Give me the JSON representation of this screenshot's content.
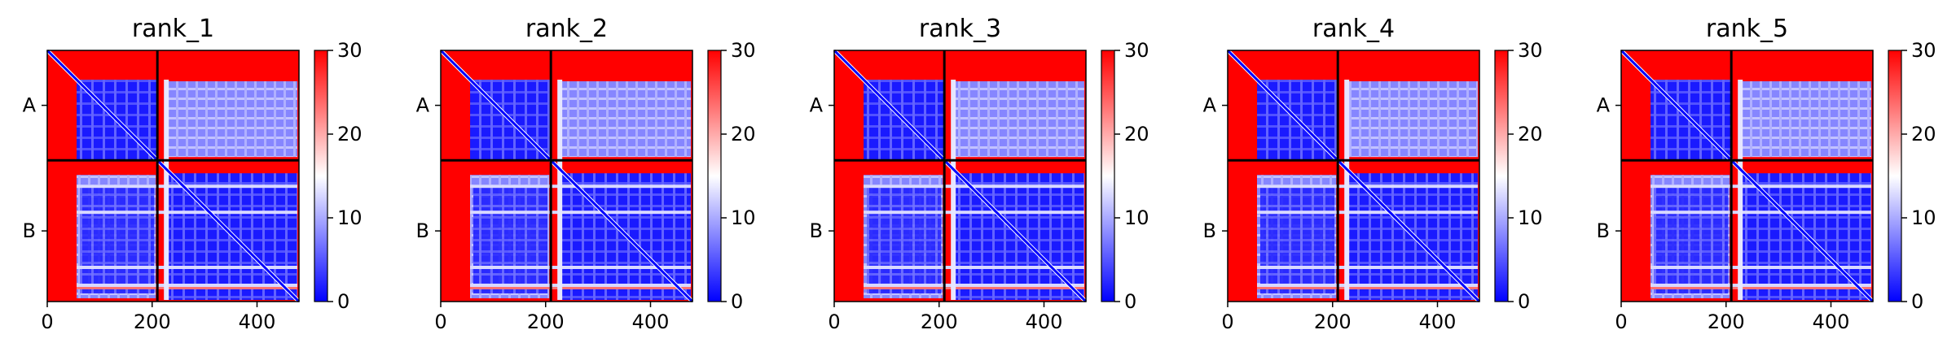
{
  "chart_data": [
    {
      "type": "heatmap",
      "title": "rank_1",
      "x_ticks": [
        0,
        200,
        400
      ],
      "x_range": [
        0,
        480
      ],
      "y_ticks": [
        "A",
        "B"
      ],
      "chain_boundary": 210,
      "colorbar": {
        "range": [
          0,
          30
        ],
        "ticks": [
          0,
          10,
          20,
          30
        ],
        "colors": [
          "#0000ff",
          "#ffffff",
          "#ff0000"
        ]
      }
    },
    {
      "type": "heatmap",
      "title": "rank_2",
      "x_ticks": [
        0,
        200,
        400
      ],
      "x_range": [
        0,
        480
      ],
      "y_ticks": [
        "A",
        "B"
      ],
      "chain_boundary": 210,
      "colorbar": {
        "range": [
          0,
          30
        ],
        "ticks": [
          0,
          10,
          20,
          30
        ],
        "colors": [
          "#0000ff",
          "#ffffff",
          "#ff0000"
        ]
      }
    },
    {
      "type": "heatmap",
      "title": "rank_3",
      "x_ticks": [
        0,
        200,
        400
      ],
      "x_range": [
        0,
        480
      ],
      "y_ticks": [
        "A",
        "B"
      ],
      "chain_boundary": 210,
      "colorbar": {
        "range": [
          0,
          30
        ],
        "ticks": [
          0,
          10,
          20,
          30
        ],
        "colors": [
          "#0000ff",
          "#ffffff",
          "#ff0000"
        ]
      }
    },
    {
      "type": "heatmap",
      "title": "rank_4",
      "x_ticks": [
        0,
        200,
        400
      ],
      "x_range": [
        0,
        480
      ],
      "y_ticks": [
        "A",
        "B"
      ],
      "chain_boundary": 210,
      "colorbar": {
        "range": [
          0,
          30
        ],
        "ticks": [
          0,
          10,
          20,
          30
        ],
        "colors": [
          "#0000ff",
          "#ffffff",
          "#ff0000"
        ]
      }
    },
    {
      "type": "heatmap",
      "title": "rank_5",
      "x_ticks": [
        0,
        200,
        400
      ],
      "x_range": [
        0,
        480
      ],
      "y_ticks": [
        "A",
        "B"
      ],
      "chain_boundary": 210,
      "colorbar": {
        "range": [
          0,
          30
        ],
        "ticks": [
          0,
          10,
          20,
          30
        ],
        "colors": [
          "#0000ff",
          "#ffffff",
          "#ff0000"
        ]
      }
    }
  ]
}
